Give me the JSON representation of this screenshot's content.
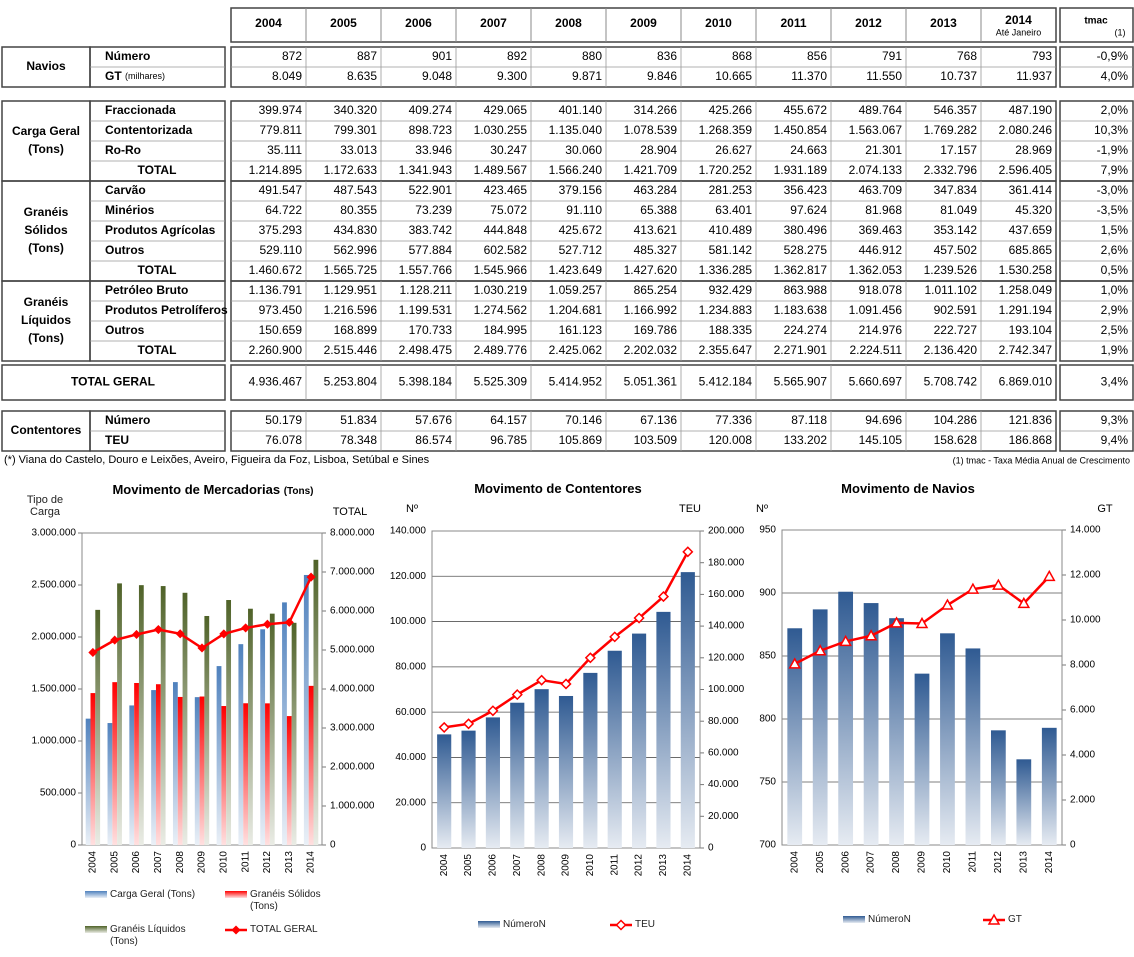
{
  "table": {
    "years": [
      "2004",
      "2005",
      "2006",
      "2007",
      "2008",
      "2009",
      "2010",
      "2011",
      "2012",
      "2013",
      "2014"
    ],
    "year_note": "Até Janeiro",
    "tmac": "tmac",
    "tmac_note": "(1)",
    "sections": [
      {
        "label": [
          "Navios"
        ],
        "rows": [
          {
            "name": "Número",
            "values": [
              "872",
              "887",
              "901",
              "892",
              "880",
              "836",
              "868",
              "856",
              "791",
              "768",
              "793"
            ],
            "tmac": "-0,9%"
          },
          {
            "name": "GT",
            "name_note": "(milhares)",
            "values": [
              "8.049",
              "8.635",
              "9.048",
              "9.300",
              "9.871",
              "9.846",
              "10.665",
              "11.370",
              "11.550",
              "10.737",
              "11.937"
            ],
            "tmac": "4,0%"
          }
        ]
      },
      {
        "label": [
          "Carga Geral",
          "(Tons)"
        ],
        "rows": [
          {
            "name": "Fraccionada",
            "values": [
              "399.974",
              "340.320",
              "409.274",
              "429.065",
              "401.140",
              "314.266",
              "425.266",
              "455.672",
              "489.764",
              "546.357",
              "487.190"
            ],
            "tmac": "2,0%"
          },
          {
            "name": "Contentorizada",
            "values": [
              "779.811",
              "799.301",
              "898.723",
              "1.030.255",
              "1.135.040",
              "1.078.539",
              "1.268.359",
              "1.450.854",
              "1.563.067",
              "1.769.282",
              "2.080.246"
            ],
            "tmac": "10,3%"
          },
          {
            "name": "Ro-Ro",
            "values": [
              "35.111",
              "33.013",
              "33.946",
              "30.247",
              "30.060",
              "28.904",
              "26.627",
              "24.663",
              "21.301",
              "17.157",
              "28.969"
            ],
            "tmac": "-1,9%"
          },
          {
            "name": "TOTAL",
            "values": [
              "1.214.895",
              "1.172.633",
              "1.341.943",
              "1.489.567",
              "1.566.240",
              "1.421.709",
              "1.720.252",
              "1.931.189",
              "2.074.133",
              "2.332.796",
              "2.596.405"
            ],
            "tmac": "7,9%"
          }
        ]
      },
      {
        "label": [
          "Granéis",
          "Sólidos",
          "(Tons)"
        ],
        "rows": [
          {
            "name": "Carvão",
            "values": [
              "491.547",
              "487.543",
              "522.901",
              "423.465",
              "379.156",
              "463.284",
              "281.253",
              "356.423",
              "463.709",
              "347.834",
              "361.414"
            ],
            "tmac": "-3,0%"
          },
          {
            "name": "Minérios",
            "values": [
              "64.722",
              "80.355",
              "73.239",
              "75.072",
              "91.110",
              "65.388",
              "63.401",
              "97.624",
              "81.968",
              "81.049",
              "45.320"
            ],
            "tmac": "-3,5%"
          },
          {
            "name": "Produtos Agrícolas",
            "values": [
              "375.293",
              "434.830",
              "383.742",
              "444.848",
              "425.672",
              "413.621",
              "410.489",
              "380.496",
              "369.463",
              "353.142",
              "437.659"
            ],
            "tmac": "1,5%"
          },
          {
            "name": "Outros",
            "values": [
              "529.110",
              "562.996",
              "577.884",
              "602.582",
              "527.712",
              "485.327",
              "581.142",
              "528.275",
              "446.912",
              "457.502",
              "685.865"
            ],
            "tmac": "2,6%"
          },
          {
            "name": "TOTAL",
            "values": [
              "1.460.672",
              "1.565.725",
              "1.557.766",
              "1.545.966",
              "1.423.649",
              "1.427.620",
              "1.336.285",
              "1.362.817",
              "1.362.053",
              "1.239.526",
              "1.530.258"
            ],
            "tmac": "0,5%"
          }
        ]
      },
      {
        "label": [
          "Granéis",
          "Líquidos",
          "(Tons)"
        ],
        "rows": [
          {
            "name": "Petróleo Bruto",
            "values": [
              "1.136.791",
              "1.129.951",
              "1.128.211",
              "1.030.219",
              "1.059.257",
              "865.254",
              "932.429",
              "863.988",
              "918.078",
              "1.011.102",
              "1.258.049"
            ],
            "tmac": "1,0%"
          },
          {
            "name": "Produtos Petrolíferos",
            "values": [
              "973.450",
              "1.216.596",
              "1.199.531",
              "1.274.562",
              "1.204.681",
              "1.166.992",
              "1.234.883",
              "1.183.638",
              "1.091.456",
              "902.591",
              "1.291.194"
            ],
            "tmac": "2,9%"
          },
          {
            "name": "Outros",
            "values": [
              "150.659",
              "168.899",
              "170.733",
              "184.995",
              "161.123",
              "169.786",
              "188.335",
              "224.274",
              "214.976",
              "222.727",
              "193.104"
            ],
            "tmac": "2,5%"
          },
          {
            "name": "TOTAL",
            "values": [
              "2.260.900",
              "2.515.446",
              "2.498.475",
              "2.489.776",
              "2.425.062",
              "2.202.032",
              "2.355.647",
              "2.271.901",
              "2.224.511",
              "2.136.420",
              "2.742.347"
            ],
            "tmac": "1,9%"
          }
        ]
      },
      {
        "label": [
          "TOTAL GERAL"
        ],
        "rows": [
          {
            "values": [
              "4.936.467",
              "5.253.804",
              "5.398.184",
              "5.525.309",
              "5.414.952",
              "5.051.361",
              "5.412.184",
              "5.565.907",
              "5.660.697",
              "5.708.742",
              "6.869.010"
            ],
            "tmac": "3,4%"
          }
        ]
      },
      {
        "label": [
          "Contentores"
        ],
        "rows": [
          {
            "name": "Número",
            "values": [
              "50.179",
              "51.834",
              "57.676",
              "64.157",
              "70.146",
              "67.136",
              "77.336",
              "87.118",
              "94.696",
              "104.286",
              "121.836"
            ],
            "tmac": "9,3%"
          },
          {
            "name": "TEU",
            "values": [
              "76.078",
              "78.348",
              "86.574",
              "96.785",
              "105.869",
              "103.509",
              "120.008",
              "133.202",
              "145.105",
              "158.628",
              "186.868"
            ],
            "tmac": "9,4%"
          }
        ]
      }
    ],
    "footnote": "(*) Viana do Castelo, Douro e Leixões, Aveiro, Figueira da Foz, Lisboa, Setúbal e Sines",
    "footnote_tmac": "(1) tmac - Taxa Média Anual de Crescimento"
  },
  "chart_data": [
    {
      "type": "bar",
      "title": "Movimento  de Mercadorias",
      "subtitle": "(Tons)",
      "y_label": "Tipo de Carga",
      "y2_label": "TOTAL",
      "grid": false,
      "categories": [
        "2004",
        "2005",
        "2006",
        "2007",
        "2008",
        "2009",
        "2010",
        "2011",
        "2012",
        "2013",
        "2014"
      ],
      "ylim": [
        0,
        3000000
      ],
      "yticks": [
        0,
        {
          "value": 500000,
          "label": "500.000"
        },
        {
          "value": 1000000,
          "label": "1.000.000"
        },
        {
          "value": 1500000,
          "label": "1.500.000"
        },
        {
          "value": 2000000,
          "label": "2.000.000"
        },
        {
          "value": 2500000,
          "label": "2.500.000"
        },
        {
          "value": 3000000,
          "label": "3.000.000"
        }
      ],
      "y2lim": [
        0,
        8000000
      ],
      "y2ticks": [
        0,
        {
          "value": 1000000,
          "label": "1.000.000"
        },
        {
          "value": 2000000,
          "label": "2.000.000"
        },
        {
          "value": 3000000,
          "label": "3.000.000"
        },
        {
          "value": 4000000,
          "label": "4.000.000"
        },
        {
          "value": 5000000,
          "label": "5.000.000"
        },
        {
          "value": 6000000,
          "label": "6.000.000"
        },
        {
          "value": 7000000,
          "label": "7.000.000"
        },
        {
          "value": 8000000,
          "label": "8.000.000"
        }
      ],
      "series": [
        {
          "name": "Carga Geral (Tons)",
          "type": "bar",
          "color": "#4f81bd",
          "values": [
            1214895,
            1172633,
            1341943,
            1489567,
            1566240,
            1421709,
            1720252,
            1931189,
            2074133,
            2332796,
            2596405
          ]
        },
        {
          "name": "Granéis Sólidos (Tons)",
          "type": "bar",
          "color": "#ff0000",
          "values": [
            1460672,
            1565725,
            1557766,
            1545966,
            1423649,
            1427620,
            1336285,
            1362817,
            1362053,
            1239526,
            1530258
          ]
        },
        {
          "name": "Granéis Líquidos (Tons)",
          "type": "bar",
          "color": "#4f6228",
          "values": [
            2260900,
            2515446,
            2498475,
            2489776,
            2425062,
            2202032,
            2355647,
            2271901,
            2224511,
            2136420,
            2742347
          ]
        },
        {
          "name": "TOTAL GERAL",
          "type": "line",
          "axis": "y2",
          "color": "#ff0000",
          "marker": "diamond",
          "marker_fill": "#ff0000",
          "values": [
            4936467,
            5253804,
            5398184,
            5525309,
            5414952,
            5051361,
            5412184,
            5565907,
            5660697,
            5708742,
            6869010
          ]
        }
      ]
    },
    {
      "type": "bar",
      "title": "Movimento de Contentores",
      "y_label": "Nº",
      "y2_label": "TEU",
      "grid": true,
      "categories": [
        "2004",
        "2005",
        "2006",
        "2007",
        "2008",
        "2009",
        "2010",
        "2011",
        "2012",
        "2013",
        "2014"
      ],
      "ylim": [
        0,
        140000
      ],
      "yticks": [
        0,
        {
          "value": 20000,
          "label": "20.000"
        },
        {
          "value": 40000,
          "label": "40.000"
        },
        {
          "value": 60000,
          "label": "60.000"
        },
        {
          "value": 80000,
          "label": "80.000"
        },
        {
          "value": 100000,
          "label": "100.000"
        },
        {
          "value": 120000,
          "label": "120.000"
        },
        {
          "value": 140000,
          "label": "140.000"
        }
      ],
      "y2lim": [
        0,
        200000
      ],
      "y2ticks": [
        0,
        {
          "value": 20000,
          "label": "20.000"
        },
        {
          "value": 40000,
          "label": "40.000"
        },
        {
          "value": 60000,
          "label": "60.000"
        },
        {
          "value": 80000,
          "label": "80.000"
        },
        {
          "value": 100000,
          "label": "100.000"
        },
        {
          "value": 120000,
          "label": "120.000"
        },
        {
          "value": 140000,
          "label": "140.000"
        },
        {
          "value": 160000,
          "label": "160.000"
        },
        {
          "value": 180000,
          "label": "180.000"
        },
        {
          "value": 200000,
          "label": "200.000"
        }
      ],
      "series": [
        {
          "name": "NúmeroN",
          "type": "bar",
          "color": "#2f5a92",
          "values": [
            50179,
            51834,
            57676,
            64157,
            70146,
            67136,
            77336,
            87118,
            94696,
            104286,
            121836
          ]
        },
        {
          "name": "TEU",
          "type": "line",
          "axis": "y2",
          "color": "#ff0000",
          "marker": "diamond",
          "marker_fill": "#ffffff",
          "values": [
            76078,
            78348,
            86574,
            96785,
            105869,
            103509,
            120008,
            133202,
            145105,
            158628,
            186868
          ]
        }
      ]
    },
    {
      "type": "bar",
      "title": "Movimento de Navios",
      "y_label": "Nº",
      "y2_label": "GT",
      "grid": true,
      "categories": [
        "2004",
        "2005",
        "2006",
        "2007",
        "2008",
        "2009",
        "2010",
        "2011",
        "2012",
        "2013",
        "2014"
      ],
      "ylim": [
        700,
        950
      ],
      "yticks": [
        700,
        750,
        800,
        850,
        900,
        950
      ],
      "y2lim": [
        0,
        14000
      ],
      "y2ticks": [
        0,
        {
          "value": 2000,
          "label": "2.000"
        },
        {
          "value": 4000,
          "label": "4.000"
        },
        {
          "value": 6000,
          "label": "6.000"
        },
        {
          "value": 8000,
          "label": "8.000"
        },
        {
          "value": 10000,
          "label": "10.000"
        },
        {
          "value": 12000,
          "label": "12.000"
        },
        {
          "value": 14000,
          "label": "14.000"
        }
      ],
      "series": [
        {
          "name": "NúmeroN",
          "type": "bar",
          "color": "#2f5a92",
          "values": [
            872,
            887,
            901,
            892,
            880,
            836,
            868,
            856,
            791,
            768,
            793
          ]
        },
        {
          "name": "GT",
          "type": "line",
          "axis": "y2",
          "color": "#ff0000",
          "marker": "triangle",
          "marker_fill": "#ffffff",
          "values": [
            8049,
            8635,
            9048,
            9300,
            9871,
            9846,
            10665,
            11370,
            11550,
            10737,
            11937
          ]
        }
      ]
    }
  ]
}
